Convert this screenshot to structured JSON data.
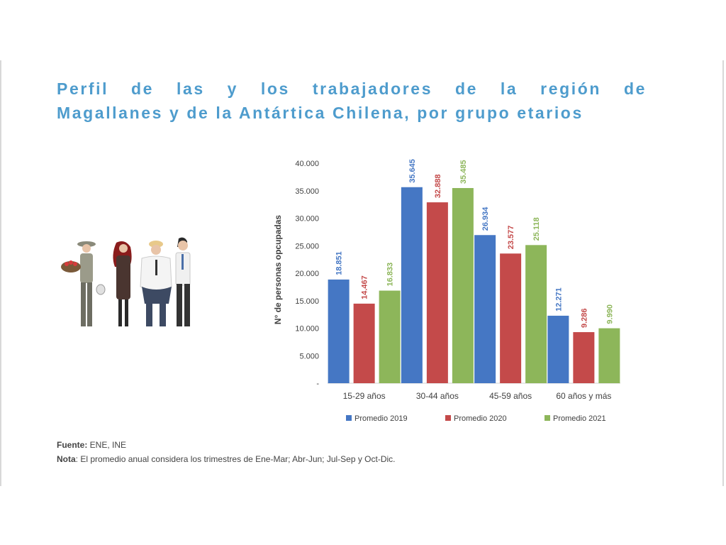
{
  "title": {
    "line1": "Perfil de las y los trabajadores de la región de",
    "line2": "Magallanes y de la Antártica Chilena, por grupo etarios"
  },
  "chart_data": {
    "type": "bar",
    "ylabel": "N° de personas opcupadas",
    "ylim": [
      0,
      40000
    ],
    "yticks": [
      "-",
      "5.000",
      "10.000",
      "15.000",
      "20.000",
      "25.000",
      "30.000",
      "35.000",
      "40.000"
    ],
    "categories": [
      "15-29 años",
      "30-44 años",
      "45-59 años",
      "60 años y más"
    ],
    "series": [
      {
        "name": "Promedio 2019",
        "color": "#4577c4",
        "values": [
          18851,
          35645,
          26934,
          12271
        ],
        "labels": [
          "18.851",
          "35.645",
          "26.934",
          "12.271"
        ]
      },
      {
        "name": "Promedio 2020",
        "color": "#c44a4a",
        "values": [
          14467,
          32888,
          23577,
          9286
        ],
        "labels": [
          "14.467",
          "32.888",
          "23.577",
          "9.286"
        ]
      },
      {
        "name": "Promedio 2021",
        "color": "#8db65a",
        "values": [
          16833,
          35485,
          25118,
          9990
        ],
        "labels": [
          "16.833",
          "35.485",
          "25.118",
          "9.990"
        ]
      }
    ],
    "grid": false,
    "legend": "bottom"
  },
  "footer": {
    "fuente_label": "Fuente:",
    "fuente_text": " ENE, INE",
    "nota_label": "Nota",
    "nota_text": ": El promedio anual considera los trimestres de Ene-Mar; Abr-Jun; Jul-Sep y Oct-Dic."
  }
}
